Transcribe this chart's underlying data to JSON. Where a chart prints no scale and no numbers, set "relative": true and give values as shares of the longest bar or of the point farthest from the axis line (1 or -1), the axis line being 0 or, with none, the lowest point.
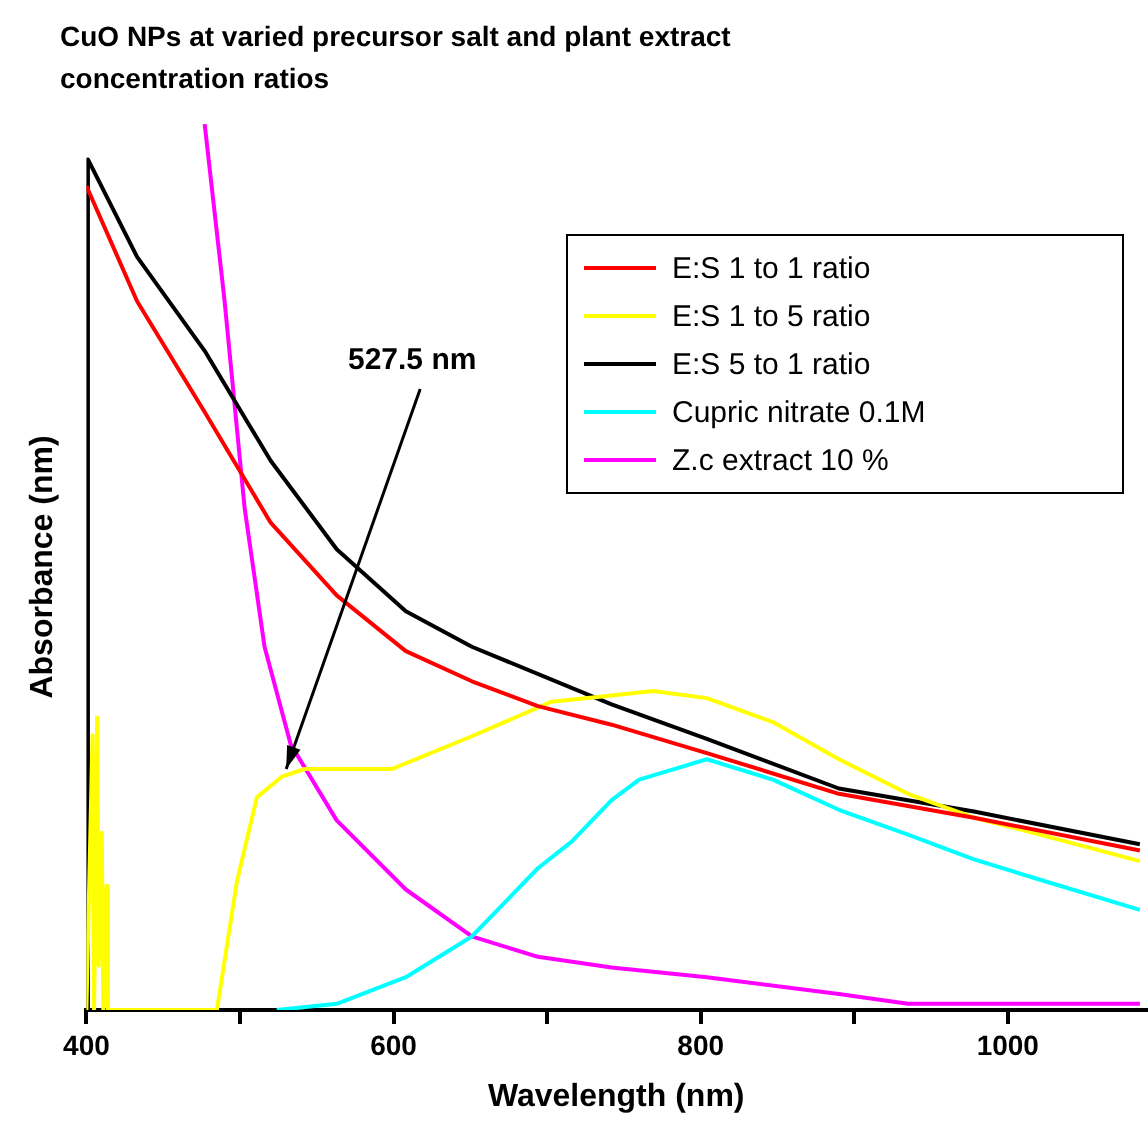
{
  "chart_data": {
    "type": "line",
    "title": "CuO NPs at varied precursor salt and plant extract concentration ratios",
    "xlabel": "Wavelength (nm)",
    "ylabel": "Absorbance (nm)",
    "relative": true,
    "xlim": [
      400,
      1090
    ],
    "xticks": [
      400,
      {
        "value": 500,
        "label": null
      },
      600,
      {
        "value": 700,
        "label": null
      },
      800,
      {
        "value": 900,
        "label": null
      },
      1000
    ],
    "grid": false,
    "legend": "top right",
    "marker": "none",
    "line_style": "solid",
    "annotations": [
      {
        "text": "527.5 nm",
        "x": 527.5,
        "y": 0.263
      }
    ],
    "series": [
      {
        "name": "E:S 1 to 1 ratio",
        "color": "#ff0000",
        "x": [
          400,
          433,
          477,
          520,
          563,
          608,
          651,
          694,
          742,
          804,
          890,
          978,
          1086
        ],
        "values": [
          0.93,
          0.8,
          0.675,
          0.55,
          0.468,
          0.405,
          0.371,
          0.343,
          0.322,
          0.29,
          0.244,
          0.217,
          0.18
        ]
      },
      {
        "name": "E:S 1 to 5 ratio",
        "color": "#ffff00",
        "x": [
          400,
          404,
          405,
          407,
          408,
          410,
          411,
          413,
          414,
          415,
          485,
          498,
          511,
          527,
          542,
          599,
          651,
          703,
          742,
          769,
          804,
          847,
          890,
          935,
          978,
          1021,
          1086
        ],
        "values": [
          0,
          0.31,
          0,
          0.33,
          0.05,
          0.2,
          0,
          0.14,
          0,
          0,
          0,
          0.145,
          0.24,
          0.263,
          0.272,
          0.272,
          0.309,
          0.348,
          0.355,
          0.36,
          0.352,
          0.325,
          0.283,
          0.244,
          0.217,
          0.198,
          0.168
        ]
      },
      {
        "name": "E:S 5 to 1 ratio",
        "color": "#000000",
        "x": [
          400,
          401,
          433,
          477,
          520,
          563,
          608,
          651,
          742,
          804,
          890,
          978,
          1086
        ],
        "values": [
          0,
          0.96,
          0.85,
          0.744,
          0.62,
          0.52,
          0.45,
          0.41,
          0.345,
          0.306,
          0.25,
          0.224,
          0.187
        ]
      },
      {
        "name": "Cupric nitrate 0.1M",
        "color": "#00ffff",
        "x": [
          524,
          563,
          608,
          651,
          694,
          716,
          742,
          760,
          804,
          847,
          890,
          935,
          978,
          1021,
          1086
        ],
        "values": [
          0,
          0.007,
          0.037,
          0.083,
          0.16,
          0.19,
          0.237,
          0.26,
          0.283,
          0.26,
          0.226,
          0.198,
          0.17,
          0.147,
          0.113
        ]
      },
      {
        "name": "Z.c extract 10 %",
        "color": "#ff00ff",
        "x": [
          477,
          490,
          503,
          516,
          533,
          563,
          608,
          651,
          694,
          742,
          804,
          890,
          935,
          1086
        ],
        "values": [
          1,
          0.8,
          0.567,
          0.41,
          0.3,
          0.214,
          0.136,
          0.083,
          0.06,
          0.048,
          0.037,
          0.018,
          0.007,
          0.007
        ]
      }
    ]
  }
}
